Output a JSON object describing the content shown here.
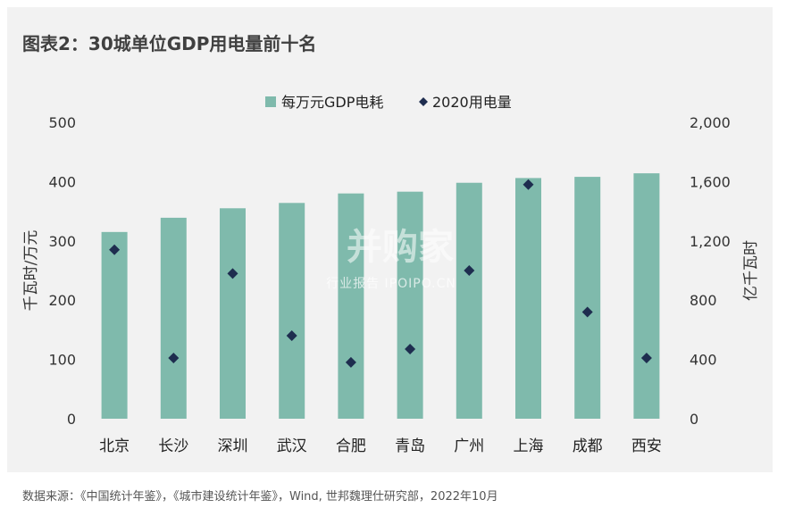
{
  "figure": {
    "title": "图表2：30城单位GDP用电量前十名",
    "source": "数据来源：《中国统计年鉴》，《城市建设统计年鉴》，Wind, 世邦魏理仕研究部，2022年10月",
    "watermark": {
      "main": "并购家",
      "sub": "行业报告 IPOIPO.CN"
    }
  },
  "chart_data": {
    "type": "bar",
    "categories": [
      "北京",
      "长沙",
      "深圳",
      "武汉",
      "合肥",
      "青岛",
      "广州",
      "上海",
      "成都",
      "西安"
    ],
    "series": [
      {
        "name": "每万元GDP电耗",
        "type": "bar",
        "axis": "left",
        "color": "#7fbaac",
        "values": [
          315,
          339,
          355,
          364,
          380,
          383,
          398,
          406,
          408,
          414
        ]
      },
      {
        "name": "2020用电量",
        "type": "scatter",
        "axis": "right",
        "color": "#1e2d4f",
        "values": [
          1140,
          410,
          980,
          560,
          380,
          470,
          1000,
          1580,
          720,
          410
        ]
      }
    ],
    "ylabel": "千瓦时/万元",
    "ylabel_right": "亿千瓦时",
    "ylim": [
      0,
      500
    ],
    "ylim_right": [
      0,
      2000
    ],
    "yticks": [
      "0",
      "100",
      "200",
      "300",
      "400",
      "500"
    ],
    "yticks_right": [
      "0",
      "400",
      "800",
      "1,200",
      "1,600",
      "2,000"
    ],
    "legend_position": "top",
    "grid": false
  }
}
